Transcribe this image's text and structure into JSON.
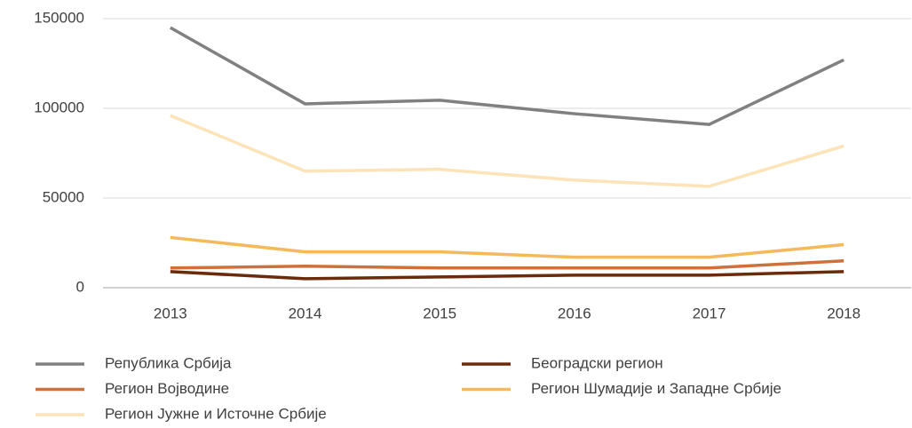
{
  "chart_data": {
    "type": "line",
    "categories": [
      "2013",
      "2014",
      "2015",
      "2016",
      "2017",
      "2018"
    ],
    "series": [
      {
        "name": "Република Србија",
        "color": "#808080",
        "values": [
          145000,
          102500,
          104500,
          97000,
          91000,
          127000
        ]
      },
      {
        "name": "Београдски регион",
        "color": "#6b2a0a",
        "values": [
          9000,
          5000,
          6000,
          7000,
          7000,
          9000
        ]
      },
      {
        "name": "Регион Војводине",
        "color": "#d0703a",
        "values": [
          11000,
          12000,
          11000,
          11000,
          11000,
          15000
        ]
      },
      {
        "name": "Регион Шумадије и Западне Србије",
        "color": "#f5b95a",
        "values": [
          28000,
          20000,
          20000,
          17000,
          17000,
          24000
        ]
      },
      {
        "name": "Регион Јужне и Источне Србије",
        "color": "#fde3b8",
        "values": [
          96000,
          65000,
          66000,
          60000,
          56500,
          79000
        ]
      }
    ],
    "ylim": [
      0,
      150000
    ],
    "yticks": [
      0,
      50000,
      100000,
      150000
    ],
    "grid": true,
    "legend": "bottom"
  }
}
